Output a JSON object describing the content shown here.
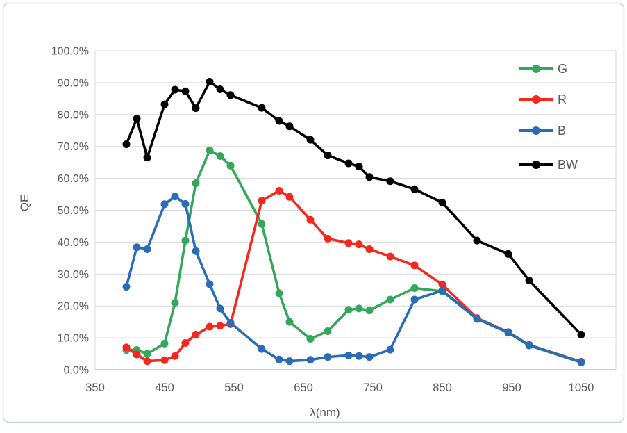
{
  "figure": {
    "background": "#ffffff",
    "frame_color": "#c9d3dc",
    "grid_color": "#d9d9d9",
    "axis_line_color": "#bfbfbf",
    "text_color": "#595959"
  },
  "axes": {
    "x_label": "λ(nm)",
    "y_label": "QE"
  },
  "legend": {
    "position": "top-right",
    "items": [
      {
        "label": "G",
        "color": "#35a75a"
      },
      {
        "label": "R",
        "color": "#f4281d"
      },
      {
        "label": "B",
        "color": "#2a6cb5"
      },
      {
        "label": "BW",
        "color": "#000000"
      }
    ]
  },
  "chart_data": {
    "type": "line",
    "title": "",
    "xlabel": "λ(nm)",
    "ylabel": "QE",
    "xlim": [
      350,
      1100
    ],
    "ylim": [
      0,
      100
    ],
    "grid": "horizontal",
    "legend_position": "top-right",
    "x_ticks": [
      {
        "value": 350,
        "label": "350"
      },
      {
        "value": 450,
        "label": "450"
      },
      {
        "value": 550,
        "label": "550"
      },
      {
        "value": 650,
        "label": "650"
      },
      {
        "value": 750,
        "label": "750"
      },
      {
        "value": 850,
        "label": "850"
      },
      {
        "value": 950,
        "label": "950"
      },
      {
        "value": 1050,
        "label": "1050"
      }
    ],
    "y_ticks": [
      {
        "value": 0,
        "label": "0.0%"
      },
      {
        "value": 10,
        "label": "10.0%"
      },
      {
        "value": 20,
        "label": "20.0%"
      },
      {
        "value": 30,
        "label": "30.0%"
      },
      {
        "value": 40,
        "label": "40.0%"
      },
      {
        "value": 50,
        "label": "50.0%"
      },
      {
        "value": 60,
        "label": "60.0%"
      },
      {
        "value": 70,
        "label": "70.0%"
      },
      {
        "value": 80,
        "label": "80.0%"
      },
      {
        "value": 90,
        "label": "90.0%"
      },
      {
        "value": 100,
        "label": "100.0%"
      }
    ],
    "x": [
      395,
      410,
      425,
      450,
      465,
      480,
      495,
      515,
      530,
      545,
      590,
      615,
      630,
      660,
      685,
      715,
      730,
      745,
      775,
      810,
      850,
      900,
      945,
      975,
      1050
    ],
    "series": [
      {
        "name": "G",
        "color": "#35a75a",
        "values": [
          6.2,
          6.2,
          5.0,
          8.2,
          21.0,
          40.5,
          58.5,
          68.8,
          67.0,
          64.0,
          45.7,
          24.0,
          15.0,
          9.7,
          12.1,
          18.8,
          19.2,
          18.6,
          22.0,
          25.6,
          24.6,
          15.9,
          11.6,
          7.6,
          2.3
        ]
      },
      {
        "name": "R",
        "color": "#f4281d",
        "values": [
          7.0,
          4.8,
          2.7,
          3.0,
          4.3,
          8.4,
          11.0,
          13.5,
          13.8,
          14.3,
          53.0,
          56.1,
          54.2,
          47.0,
          41.1,
          39.7,
          39.3,
          37.8,
          35.5,
          32.7,
          26.7,
          16.2,
          11.8,
          7.8,
          2.5
        ]
      },
      {
        "name": "B",
        "color": "#2a6cb5",
        "values": [
          26.0,
          38.4,
          37.8,
          51.9,
          54.3,
          52.0,
          37.2,
          26.8,
          19.2,
          14.7,
          6.5,
          3.2,
          2.7,
          3.1,
          4.0,
          4.5,
          4.3,
          4.0,
          6.3,
          22.0,
          24.8,
          16.0,
          11.7,
          7.7,
          2.4
        ]
      },
      {
        "name": "BW",
        "color": "#000000",
        "values": [
          70.7,
          78.7,
          66.5,
          83.2,
          87.8,
          87.3,
          82.0,
          90.3,
          87.9,
          86.1,
          82.1,
          78.0,
          76.3,
          72.1,
          67.2,
          64.7,
          63.7,
          60.4,
          59.1,
          56.6,
          52.4,
          40.5,
          36.3,
          28.0,
          11.0
        ]
      }
    ]
  }
}
